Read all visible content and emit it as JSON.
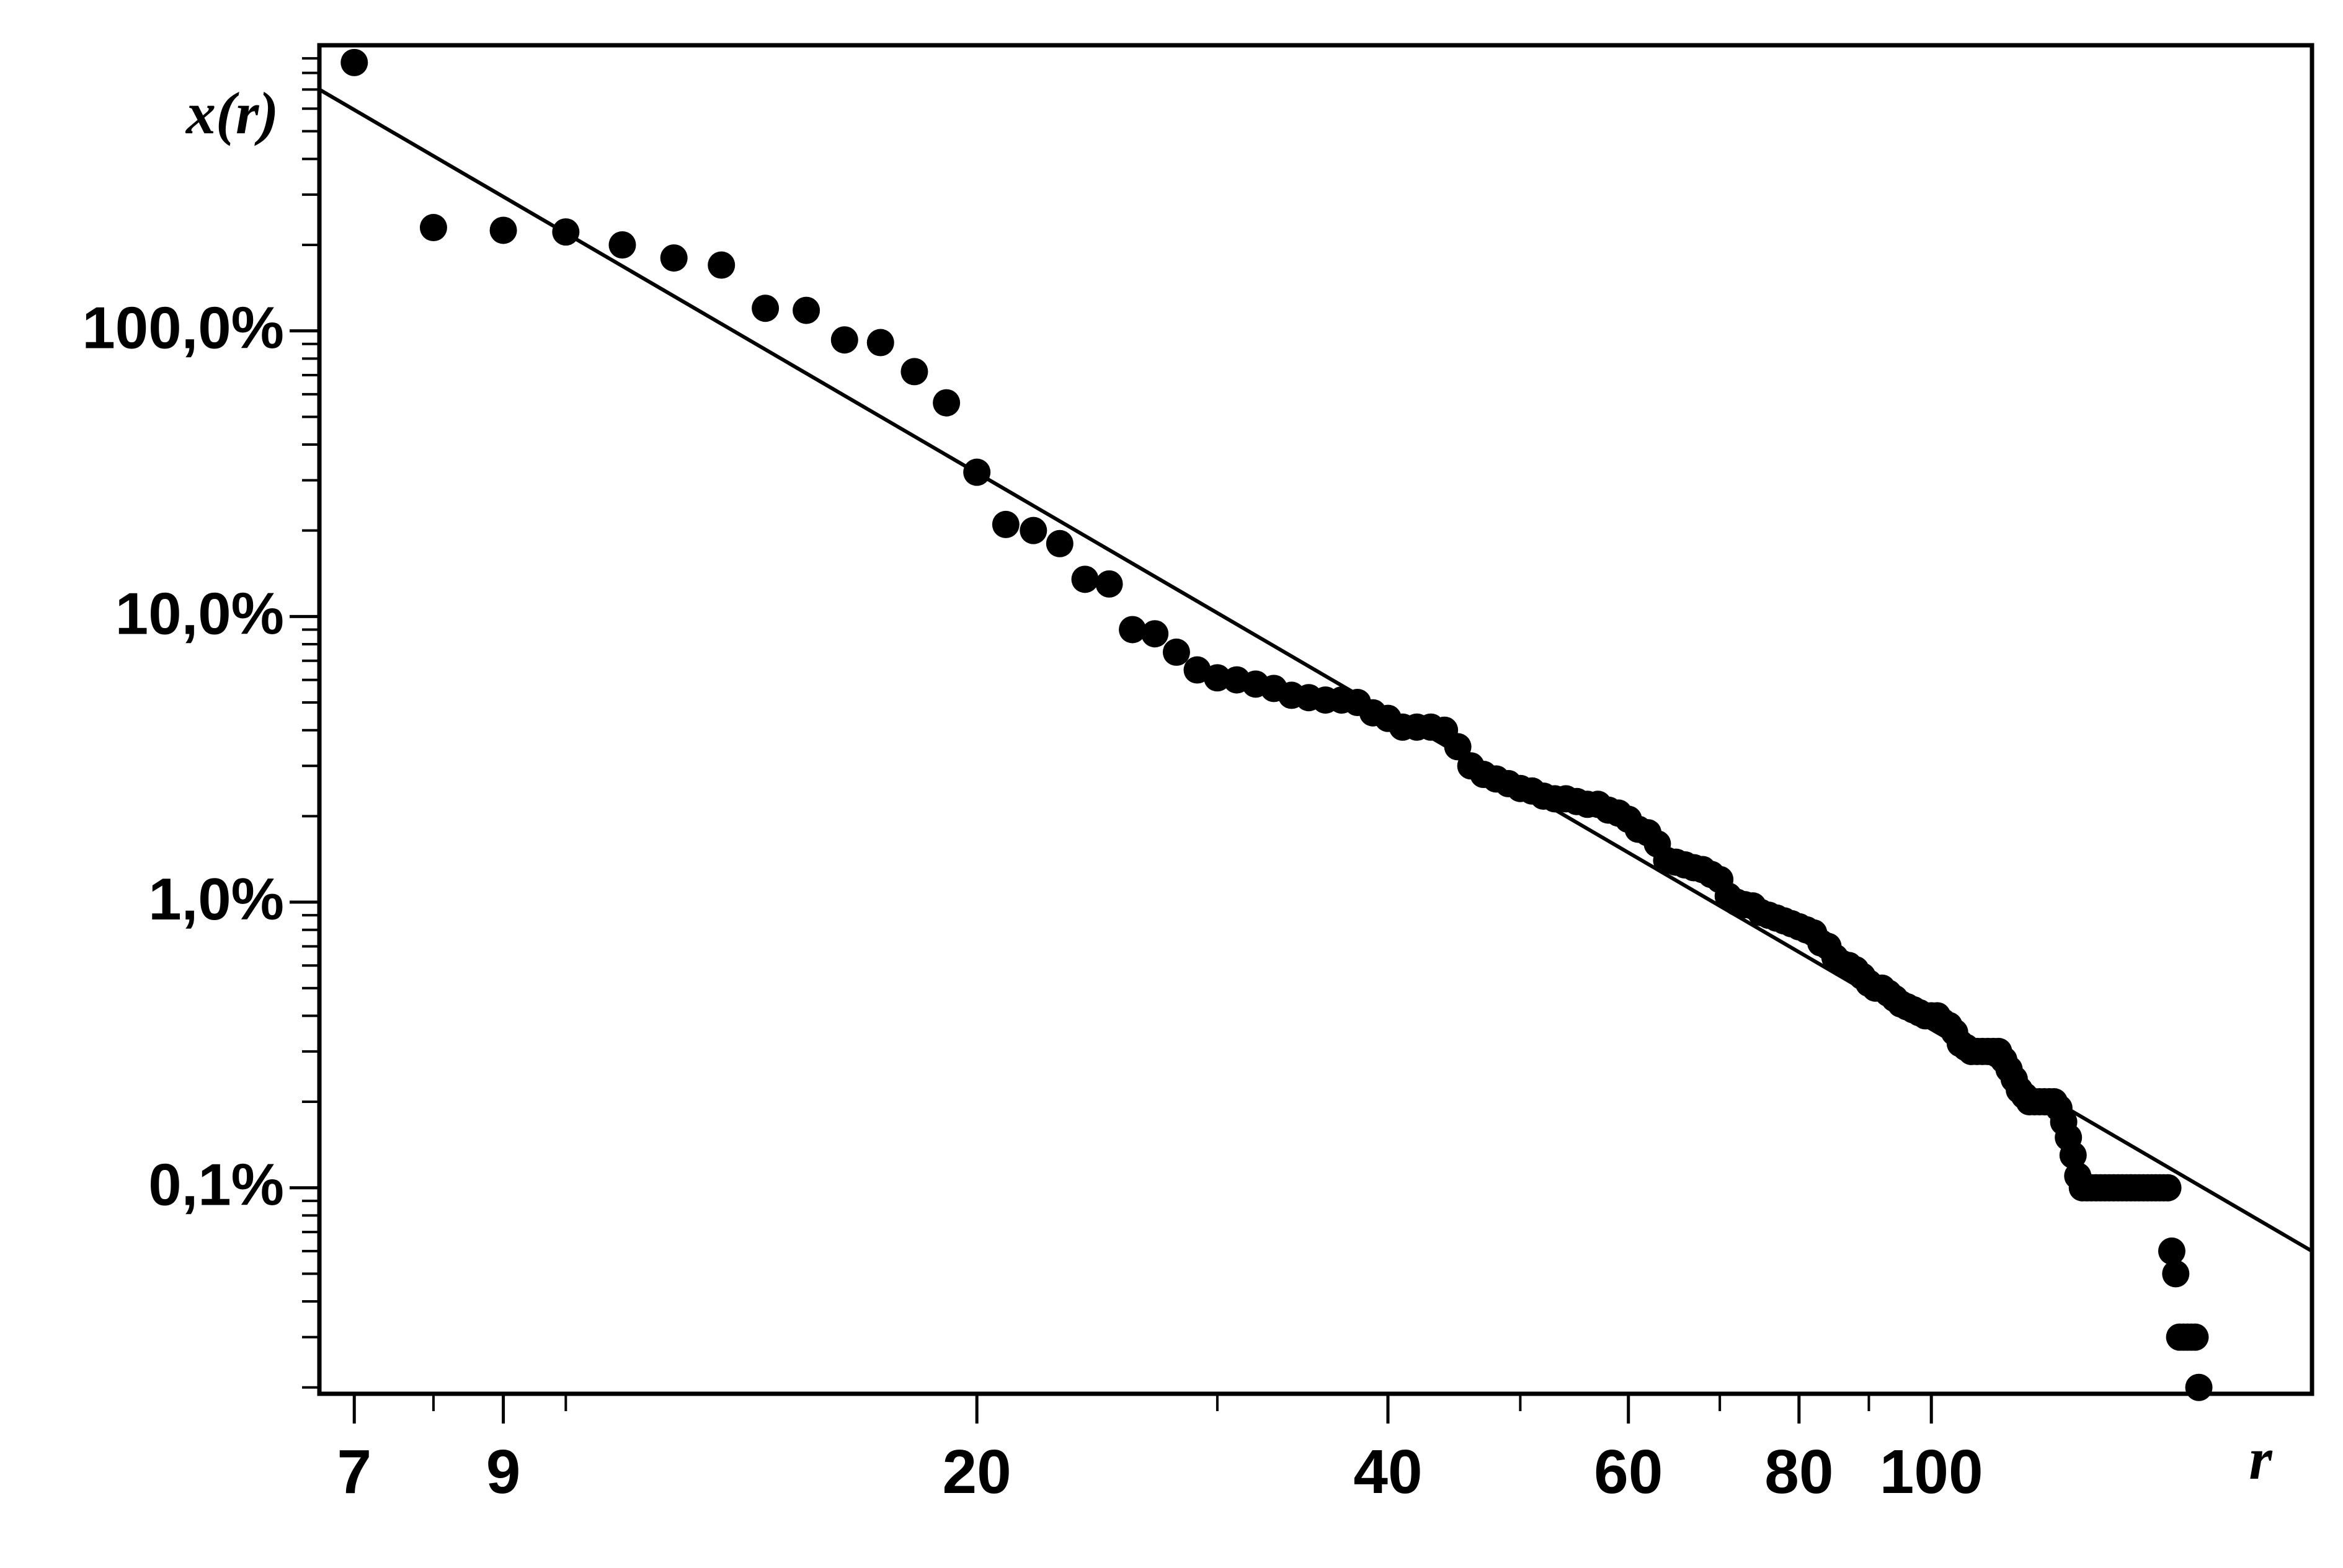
{
  "chart_data": {
    "type": "scatter",
    "title": "",
    "xlabel": "r",
    "ylabel": "x(r)",
    "x_scale": "log",
    "y_scale": "log",
    "xlim": [
      6.6,
      190
    ],
    "ylim": [
      0.019,
      1000
    ],
    "x_ticks": [
      {
        "value": 7,
        "label": "7"
      },
      {
        "value": 9,
        "label": "9"
      },
      {
        "value": 20,
        "label": "20"
      },
      {
        "value": 40,
        "label": "40"
      },
      {
        "value": 60,
        "label": "60"
      },
      {
        "value": 80,
        "label": "80"
      },
      {
        "value": 100,
        "label": "100"
      }
    ],
    "y_ticks": [
      {
        "value": 100,
        "label": "100,0%"
      },
      {
        "value": 10,
        "label": "10,0%"
      },
      {
        "value": 1,
        "label": "1,0%"
      },
      {
        "value": 0.1,
        "label": "0,1%"
      }
    ],
    "grid": false,
    "legend": "none",
    "colors": {
      "points": "#000000",
      "fit_line": "#000000"
    },
    "series": [
      {
        "kind": "points",
        "points": [
          [
            7,
            870
          ],
          [
            8,
            230
          ],
          [
            9,
            225
          ],
          [
            10,
            222
          ],
          [
            11,
            200
          ],
          [
            12,
            180
          ],
          [
            13,
            170
          ],
          [
            14,
            120
          ],
          [
            15,
            118
          ],
          [
            16,
            93
          ],
          [
            17,
            91
          ],
          [
            18,
            72
          ],
          [
            19,
            56
          ],
          [
            20,
            32
          ],
          [
            21,
            21
          ],
          [
            22,
            20
          ],
          [
            23,
            18
          ],
          [
            24,
            13.5
          ],
          [
            25,
            13
          ],
          [
            26,
            9
          ],
          [
            27,
            8.7
          ],
          [
            28,
            7.5
          ],
          [
            29,
            6.5
          ],
          [
            30,
            6.1
          ],
          [
            31,
            6.0
          ],
          [
            32,
            5.8
          ],
          [
            33,
            5.6
          ],
          [
            34,
            5.3
          ],
          [
            35,
            5.2
          ],
          [
            36,
            5.1
          ],
          [
            37,
            5.1
          ],
          [
            38,
            5.0
          ],
          [
            39,
            4.6
          ],
          [
            40,
            4.4
          ],
          [
            41,
            4.1
          ],
          [
            42,
            4.1
          ],
          [
            43,
            4.1
          ],
          [
            44,
            4.0
          ],
          [
            45,
            3.5
          ],
          [
            46,
            3.0
          ],
          [
            47,
            2.8
          ],
          [
            48,
            2.7
          ],
          [
            49,
            2.6
          ],
          [
            50,
            2.5
          ],
          [
            51,
            2.45
          ],
          [
            52,
            2.35
          ],
          [
            53,
            2.3
          ],
          [
            54,
            2.3
          ],
          [
            55,
            2.25
          ],
          [
            56,
            2.2
          ],
          [
            57,
            2.2
          ],
          [
            58,
            2.1
          ],
          [
            59,
            2.05
          ],
          [
            60,
            1.95
          ],
          [
            61,
            1.8
          ],
          [
            62,
            1.75
          ],
          [
            63,
            1.6
          ],
          [
            64,
            1.4
          ],
          [
            65,
            1.38
          ],
          [
            66,
            1.35
          ],
          [
            67,
            1.32
          ],
          [
            68,
            1.3
          ],
          [
            69,
            1.25
          ],
          [
            70,
            1.2
          ],
          [
            71,
            1.05
          ],
          [
            72,
            1.0
          ],
          [
            73,
            0.98
          ],
          [
            74,
            0.97
          ],
          [
            75,
            0.92
          ],
          [
            76,
            0.9
          ],
          [
            77,
            0.88
          ],
          [
            78,
            0.86
          ],
          [
            79,
            0.84
          ],
          [
            80,
            0.82
          ],
          [
            81,
            0.8
          ],
          [
            82,
            0.78
          ],
          [
            83,
            0.72
          ],
          [
            84,
            0.7
          ],
          [
            85,
            0.64
          ],
          [
            86,
            0.61
          ],
          [
            87,
            0.6
          ],
          [
            88,
            0.58
          ],
          [
            89,
            0.55
          ],
          [
            90,
            0.52
          ],
          [
            91,
            0.5
          ],
          [
            92,
            0.5
          ],
          [
            93,
            0.48
          ],
          [
            94,
            0.46
          ],
          [
            95,
            0.44
          ],
          [
            96,
            0.43
          ],
          [
            97,
            0.42
          ],
          [
            98,
            0.41
          ],
          [
            99,
            0.4
          ],
          [
            100,
            0.4
          ],
          [
            101,
            0.4
          ],
          [
            102,
            0.38
          ],
          [
            103,
            0.37
          ],
          [
            104,
            0.35
          ],
          [
            105,
            0.32
          ],
          [
            106,
            0.31
          ],
          [
            107,
            0.3
          ],
          [
            108,
            0.3
          ],
          [
            109,
            0.3
          ],
          [
            110,
            0.3
          ],
          [
            111,
            0.3
          ],
          [
            112,
            0.3
          ],
          [
            113,
            0.28
          ],
          [
            114,
            0.26
          ],
          [
            115,
            0.24
          ],
          [
            116,
            0.22
          ],
          [
            117,
            0.21
          ],
          [
            118,
            0.2
          ],
          [
            119,
            0.2
          ],
          [
            120,
            0.2
          ],
          [
            121,
            0.2
          ],
          [
            122,
            0.2
          ],
          [
            123,
            0.2
          ],
          [
            124,
            0.19
          ],
          [
            125,
            0.17
          ],
          [
            126,
            0.15
          ],
          [
            127,
            0.13
          ],
          [
            128,
            0.11
          ],
          [
            129,
            0.1
          ],
          [
            130,
            0.1
          ],
          [
            131,
            0.1
          ],
          [
            132,
            0.1
          ],
          [
            133,
            0.1
          ],
          [
            134,
            0.1
          ],
          [
            135,
            0.1
          ],
          [
            136,
            0.1
          ],
          [
            137,
            0.1
          ],
          [
            138,
            0.1
          ],
          [
            139,
            0.1
          ],
          [
            140,
            0.1
          ],
          [
            141,
            0.1
          ],
          [
            142,
            0.1
          ],
          [
            143,
            0.1
          ],
          [
            144,
            0.1
          ],
          [
            145,
            0.1
          ],
          [
            146,
            0.1
          ],
          [
            147,
            0.1
          ],
          [
            148,
            0.1
          ],
          [
            149,
            0.1
          ],
          [
            150,
            0.06
          ],
          [
            151,
            0.05
          ],
          [
            152,
            0.03
          ],
          [
            153,
            0.03
          ],
          [
            154,
            0.03
          ],
          [
            155,
            0.03
          ],
          [
            156,
            0.03
          ],
          [
            157,
            0.02
          ]
        ]
      },
      {
        "kind": "line",
        "points": [
          [
            6.6,
            700
          ],
          [
            190,
            0.06
          ]
        ]
      }
    ]
  }
}
